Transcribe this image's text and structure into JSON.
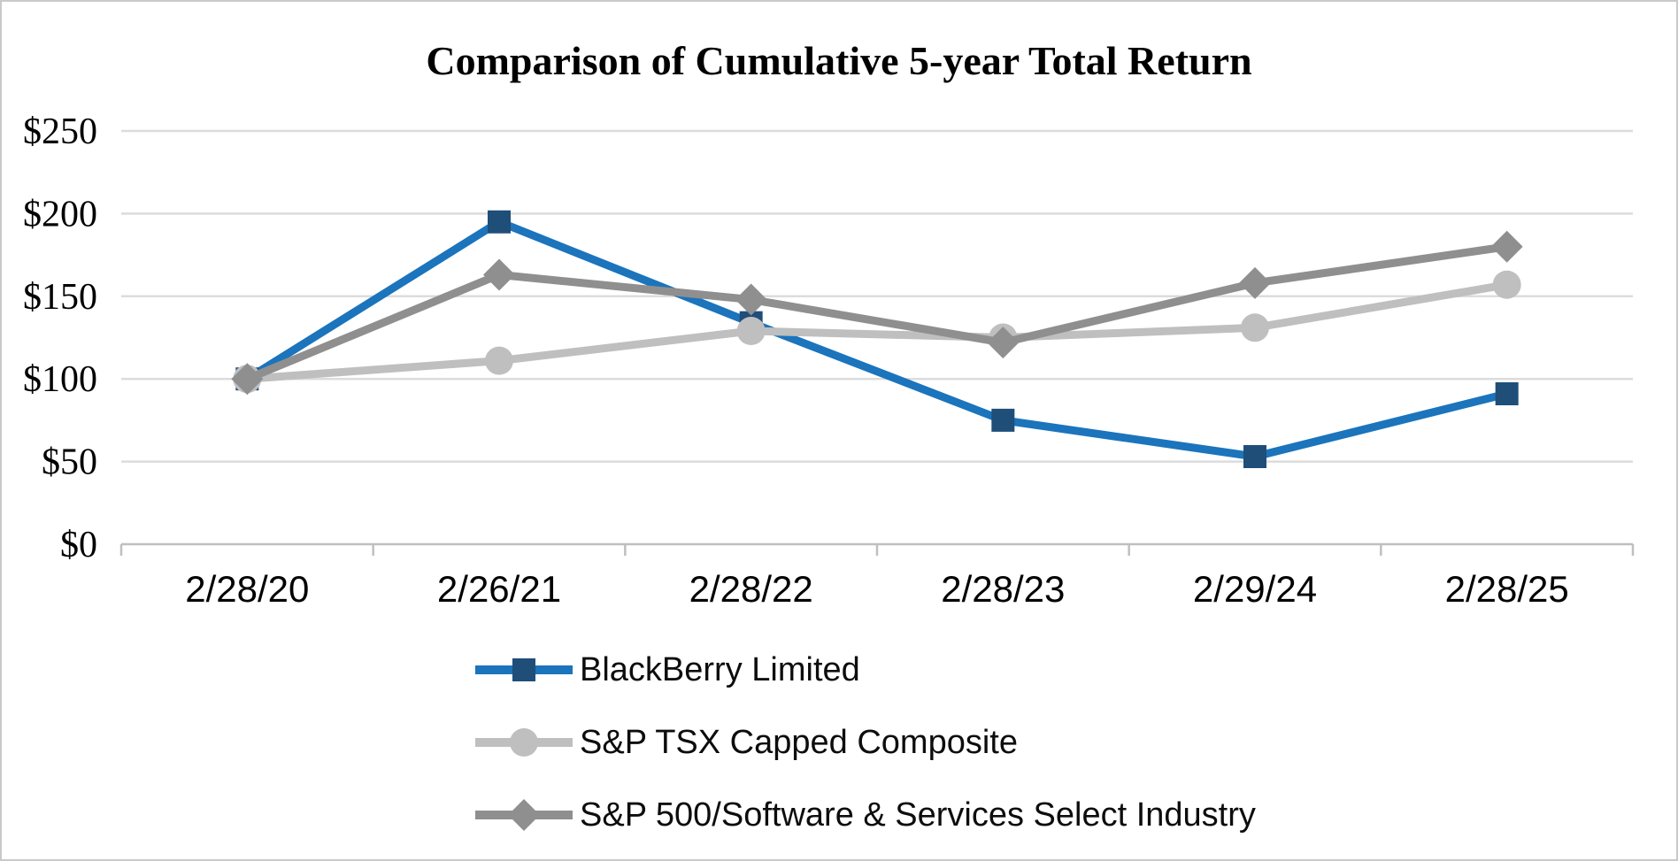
{
  "chart_data": {
    "type": "line",
    "title": "Comparison of Cumulative 5-year Total Return",
    "xlabel": "",
    "ylabel": "",
    "categories": [
      "2/28/20",
      "2/26/21",
      "2/28/22",
      "2/28/23",
      "2/29/24",
      "2/28/25"
    ],
    "series": [
      {
        "name": "BlackBerry Limited",
        "values": [
          100,
          195,
          134,
          75,
          53,
          91
        ],
        "line_color": "#1b74bc",
        "marker_color": "#1f4e79",
        "marker": "square"
      },
      {
        "name": "S&P TSX Capped Composite",
        "values": [
          100,
          111,
          129,
          125,
          131,
          157
        ],
        "line_color": "#bfbfbf",
        "marker_color": "#bfbfbf",
        "marker": "circle"
      },
      {
        "name": "S&P 500/Software & Services Select Industry",
        "values": [
          100,
          163,
          148,
          122,
          158,
          180
        ],
        "line_color": "#8f8f8f",
        "marker_color": "#8f8f8f",
        "marker": "diamond"
      }
    ],
    "y_ticks": {
      "values": [
        0,
        50,
        100,
        150,
        200,
        250
      ],
      "labels": [
        "$0",
        "$50",
        "$100",
        "$150",
        "$200",
        "$250"
      ]
    },
    "ylim": [
      0,
      250
    ],
    "grid": true,
    "legend_position": "bottom",
    "colors": {
      "gridline": "#dcdcdc",
      "axis": "#bfbfbf",
      "text": "#000000",
      "background": "#ffffff",
      "border": "#c9c9c9"
    }
  }
}
